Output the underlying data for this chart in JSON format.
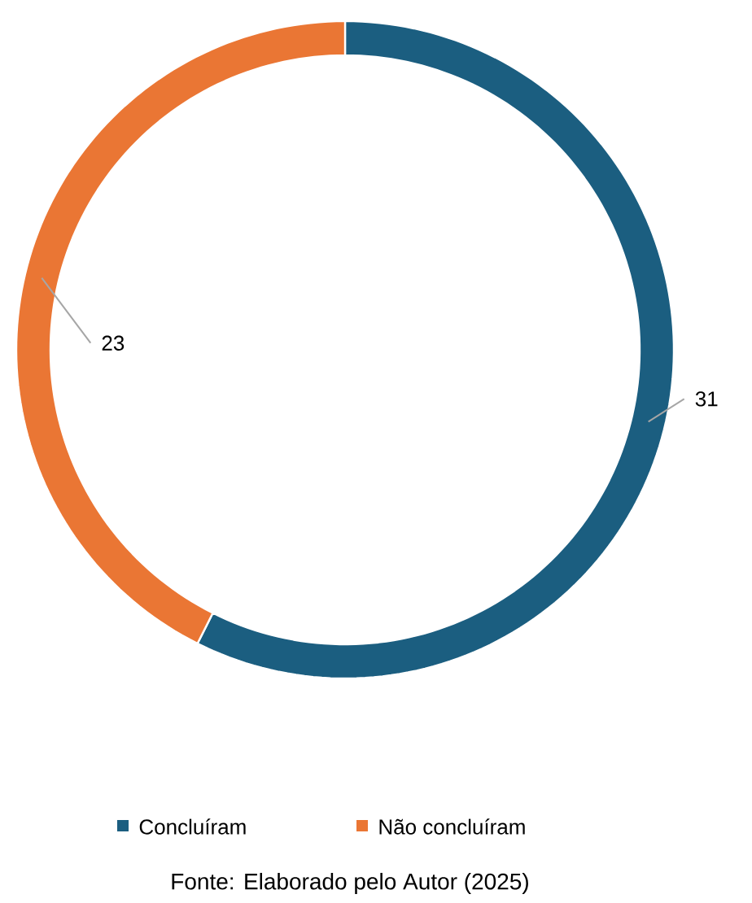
{
  "chart_data": {
    "type": "donut",
    "categories": [
      "Concluíram",
      "Não concluíram"
    ],
    "values": [
      31,
      23
    ],
    "colors": [
      "#1b5e80",
      "#ea7634"
    ],
    "data_labels": true,
    "legend": "bottom",
    "annotations": [
      "Fonte: Elaborado pelo Autor (2025)"
    ]
  }
}
